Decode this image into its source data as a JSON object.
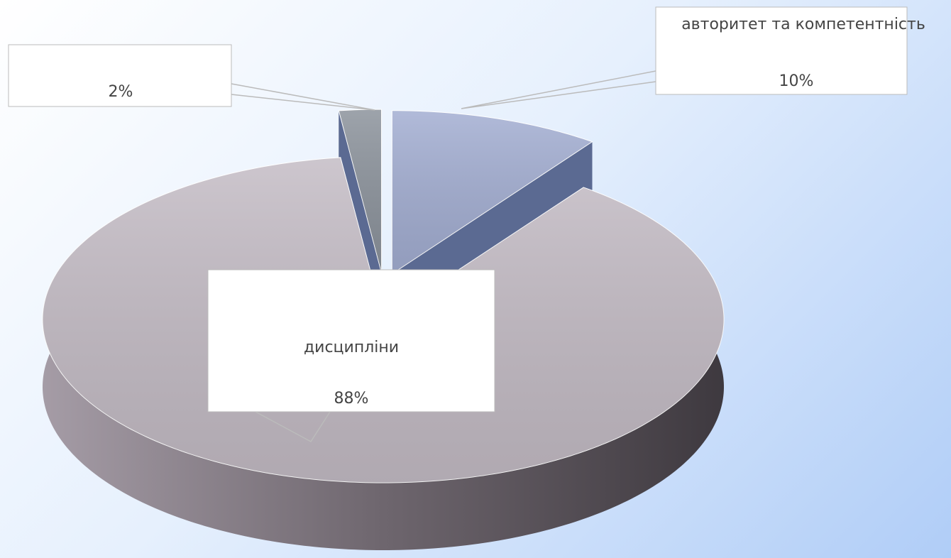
{
  "chart_data": {
    "type": "pie3d",
    "categories": [
      "авторитет та компетентність",
      "дисципліни",
      null
    ],
    "values": [
      10,
      88,
      2
    ],
    "value_labels": [
      "10%",
      "88%",
      "2%"
    ],
    "colors": [
      "#a3aed2",
      "#c4bcc5",
      "#8c939c"
    ],
    "explode": [
      true,
      false,
      true
    ]
  }
}
